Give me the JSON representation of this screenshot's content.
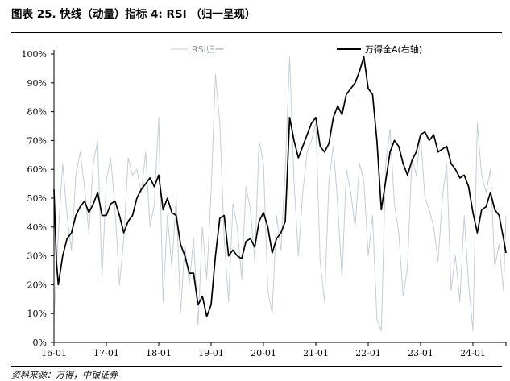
{
  "title": "图表 25. 快线（动量）指标 4:  RSI  （归一呈现）",
  "source": "资料来源：万得，中银证券",
  "colors": {
    "rsi": "#c5cdd8",
    "index": "#000000",
    "axis": "#000000"
  },
  "chart_data": {
    "type": "line",
    "title": "图表 25. 快线（动量）指标 4:  RSI  （归一呈现）",
    "xlabel": "",
    "ylabel": "",
    "ylim": [
      0,
      100
    ],
    "y_ticks": [
      "0%",
      "10%",
      "20%",
      "30%",
      "40%",
      "50%",
      "60%",
      "70%",
      "80%",
      "90%",
      "100%"
    ],
    "x_ticks": [
      "16-01",
      "17-01",
      "18-01",
      "19-01",
      "20-01",
      "21-01",
      "22-01",
      "23-01",
      "24-01"
    ],
    "x_range": [
      "2016-01",
      "2024-09"
    ],
    "grid": false,
    "legend": "top",
    "series": [
      {
        "name": "RSI归一",
        "color": "#c5cdd8",
        "values": [
          [
            "2016-01",
            8
          ],
          [
            "2016-02",
            38
          ],
          [
            "2016-03",
            62
          ],
          [
            "2016-04",
            44
          ],
          [
            "2016-05",
            32
          ],
          [
            "2016-06",
            58
          ],
          [
            "2016-07",
            66
          ],
          [
            "2016-08",
            54
          ],
          [
            "2016-09",
            38
          ],
          [
            "2016-10",
            62
          ],
          [
            "2016-11",
            70
          ],
          [
            "2016-12",
            22
          ],
          [
            "2017-01",
            56
          ],
          [
            "2017-02",
            64
          ],
          [
            "2017-03",
            46
          ],
          [
            "2017-04",
            20
          ],
          [
            "2017-05",
            36
          ],
          [
            "2017-06",
            64
          ],
          [
            "2017-07",
            58
          ],
          [
            "2017-08",
            60
          ],
          [
            "2017-09",
            52
          ],
          [
            "2017-10",
            66
          ],
          [
            "2017-11",
            40
          ],
          [
            "2017-12",
            48
          ],
          [
            "2018-01",
            78
          ],
          [
            "2018-02",
            14
          ],
          [
            "2018-03",
            44
          ],
          [
            "2018-04",
            26
          ],
          [
            "2018-05",
            50
          ],
          [
            "2018-06",
            10
          ],
          [
            "2018-07",
            34
          ],
          [
            "2018-08",
            20
          ],
          [
            "2018-09",
            36
          ],
          [
            "2018-10",
            6
          ],
          [
            "2018-11",
            40
          ],
          [
            "2018-12",
            22
          ],
          [
            "2019-01",
            52
          ],
          [
            "2019-02",
            93
          ],
          [
            "2019-03",
            76
          ],
          [
            "2019-04",
            36
          ],
          [
            "2019-05",
            14
          ],
          [
            "2019-06",
            48
          ],
          [
            "2019-07",
            40
          ],
          [
            "2019-08",
            22
          ],
          [
            "2019-09",
            54
          ],
          [
            "2019-10",
            46
          ],
          [
            "2019-11",
            28
          ],
          [
            "2019-12",
            70
          ],
          [
            "2020-01",
            62
          ],
          [
            "2020-02",
            18
          ],
          [
            "2020-03",
            10
          ],
          [
            "2020-04",
            44
          ],
          [
            "2020-05",
            32
          ],
          [
            "2020-06",
            60
          ],
          [
            "2020-07",
            99
          ],
          [
            "2020-08",
            56
          ],
          [
            "2020-09",
            30
          ],
          [
            "2020-10",
            52
          ],
          [
            "2020-11",
            66
          ],
          [
            "2020-12",
            70
          ],
          [
            "2021-01",
            76
          ],
          [
            "2021-02",
            28
          ],
          [
            "2021-03",
            14
          ],
          [
            "2021-04",
            56
          ],
          [
            "2021-05",
            68
          ],
          [
            "2021-06",
            48
          ],
          [
            "2021-07",
            22
          ],
          [
            "2021-08",
            60
          ],
          [
            "2021-09",
            52
          ],
          [
            "2021-10",
            40
          ],
          [
            "2021-11",
            62
          ],
          [
            "2021-12",
            56
          ],
          [
            "2022-01",
            30
          ],
          [
            "2022-02",
            44
          ],
          [
            "2022-03",
            8
          ],
          [
            "2022-04",
            4
          ],
          [
            "2022-05",
            62
          ],
          [
            "2022-06",
            74
          ],
          [
            "2022-07",
            48
          ],
          [
            "2022-08",
            38
          ],
          [
            "2022-09",
            16
          ],
          [
            "2022-10",
            26
          ],
          [
            "2022-11",
            64
          ],
          [
            "2022-12",
            58
          ],
          [
            "2023-01",
            72
          ],
          [
            "2023-02",
            50
          ],
          [
            "2023-03",
            46
          ],
          [
            "2023-04",
            40
          ],
          [
            "2023-05",
            28
          ],
          [
            "2023-06",
            50
          ],
          [
            "2023-07",
            62
          ],
          [
            "2023-08",
            18
          ],
          [
            "2023-09",
            30
          ],
          [
            "2023-10",
            14
          ],
          [
            "2023-11",
            44
          ],
          [
            "2023-12",
            20
          ],
          [
            "2024-01",
            4
          ],
          [
            "2024-02",
            76
          ],
          [
            "2024-03",
            58
          ],
          [
            "2024-04",
            52
          ],
          [
            "2024-05",
            60
          ],
          [
            "2024-06",
            26
          ],
          [
            "2024-07",
            34
          ],
          [
            "2024-08",
            18
          ],
          [
            "2024-09",
            44
          ]
        ]
      },
      {
        "name": "万得全A(右轴)",
        "color": "#000000",
        "values": [
          [
            "2016-01",
            53
          ],
          [
            "2016-01",
            28
          ],
          [
            "2016-02",
            20
          ],
          [
            "2016-03",
            30
          ],
          [
            "2016-04",
            36
          ],
          [
            "2016-05",
            38
          ],
          [
            "2016-06",
            44
          ],
          [
            "2016-07",
            47
          ],
          [
            "2016-08",
            49
          ],
          [
            "2016-09",
            45
          ],
          [
            "2016-10",
            48
          ],
          [
            "2016-11",
            52
          ],
          [
            "2016-12",
            44
          ],
          [
            "2017-01",
            44
          ],
          [
            "2017-02",
            48
          ],
          [
            "2017-03",
            49
          ],
          [
            "2017-04",
            44
          ],
          [
            "2017-05",
            38
          ],
          [
            "2017-06",
            42
          ],
          [
            "2017-07",
            44
          ],
          [
            "2017-08",
            50
          ],
          [
            "2017-09",
            53
          ],
          [
            "2017-10",
            55
          ],
          [
            "2017-11",
            57
          ],
          [
            "2017-12",
            54
          ],
          [
            "2018-01",
            58
          ],
          [
            "2018-02",
            46
          ],
          [
            "2018-03",
            50
          ],
          [
            "2018-04",
            45
          ],
          [
            "2018-05",
            44
          ],
          [
            "2018-06",
            34
          ],
          [
            "2018-07",
            30
          ],
          [
            "2018-08",
            24
          ],
          [
            "2018-09",
            24
          ],
          [
            "2018-10",
            13
          ],
          [
            "2018-11",
            16
          ],
          [
            "2018-12",
            9
          ],
          [
            "2019-01",
            13
          ],
          [
            "2019-02",
            30
          ],
          [
            "2019-03",
            43
          ],
          [
            "2019-04",
            44
          ],
          [
            "2019-05",
            30
          ],
          [
            "2019-06",
            32
          ],
          [
            "2019-07",
            30
          ],
          [
            "2019-08",
            29
          ],
          [
            "2019-09",
            35
          ],
          [
            "2019-10",
            36
          ],
          [
            "2019-11",
            33
          ],
          [
            "2019-12",
            42
          ],
          [
            "2020-01",
            45
          ],
          [
            "2020-02",
            40
          ],
          [
            "2020-03",
            31
          ],
          [
            "2020-04",
            36
          ],
          [
            "2020-05",
            38
          ],
          [
            "2020-06",
            42
          ],
          [
            "2020-07",
            78
          ],
          [
            "2020-08",
            70
          ],
          [
            "2020-09",
            64
          ],
          [
            "2020-10",
            68
          ],
          [
            "2020-11",
            72
          ],
          [
            "2020-12",
            76
          ],
          [
            "2021-01",
            78
          ],
          [
            "2021-02",
            68
          ],
          [
            "2021-03",
            66
          ],
          [
            "2021-04",
            69
          ],
          [
            "2021-05",
            78
          ],
          [
            "2021-06",
            82
          ],
          [
            "2021-07",
            79
          ],
          [
            "2021-08",
            86
          ],
          [
            "2021-09",
            88
          ],
          [
            "2021-10",
            90
          ],
          [
            "2021-11",
            94
          ],
          [
            "2021-12",
            99
          ],
          [
            "2022-01",
            88
          ],
          [
            "2022-02",
            86
          ],
          [
            "2022-03",
            70
          ],
          [
            "2022-04",
            46
          ],
          [
            "2022-05",
            56
          ],
          [
            "2022-06",
            66
          ],
          [
            "2022-07",
            70
          ],
          [
            "2022-08",
            68
          ],
          [
            "2022-09",
            62
          ],
          [
            "2022-10",
            58
          ],
          [
            "2022-11",
            63
          ],
          [
            "2022-12",
            66
          ],
          [
            "2023-01",
            72
          ],
          [
            "2023-02",
            73
          ],
          [
            "2023-03",
            70
          ],
          [
            "2023-04",
            72
          ],
          [
            "2023-05",
            66
          ],
          [
            "2023-06",
            67
          ],
          [
            "2023-07",
            68
          ],
          [
            "2023-08",
            62
          ],
          [
            "2023-09",
            60
          ],
          [
            "2023-10",
            57
          ],
          [
            "2023-11",
            58
          ],
          [
            "2023-12",
            54
          ],
          [
            "2024-01",
            45
          ],
          [
            "2024-02",
            38
          ],
          [
            "2024-03",
            46
          ],
          [
            "2024-04",
            47
          ],
          [
            "2024-05",
            52
          ],
          [
            "2024-06",
            46
          ],
          [
            "2024-07",
            44
          ],
          [
            "2024-08",
            36
          ],
          [
            "2024-09",
            31
          ]
        ]
      }
    ]
  }
}
